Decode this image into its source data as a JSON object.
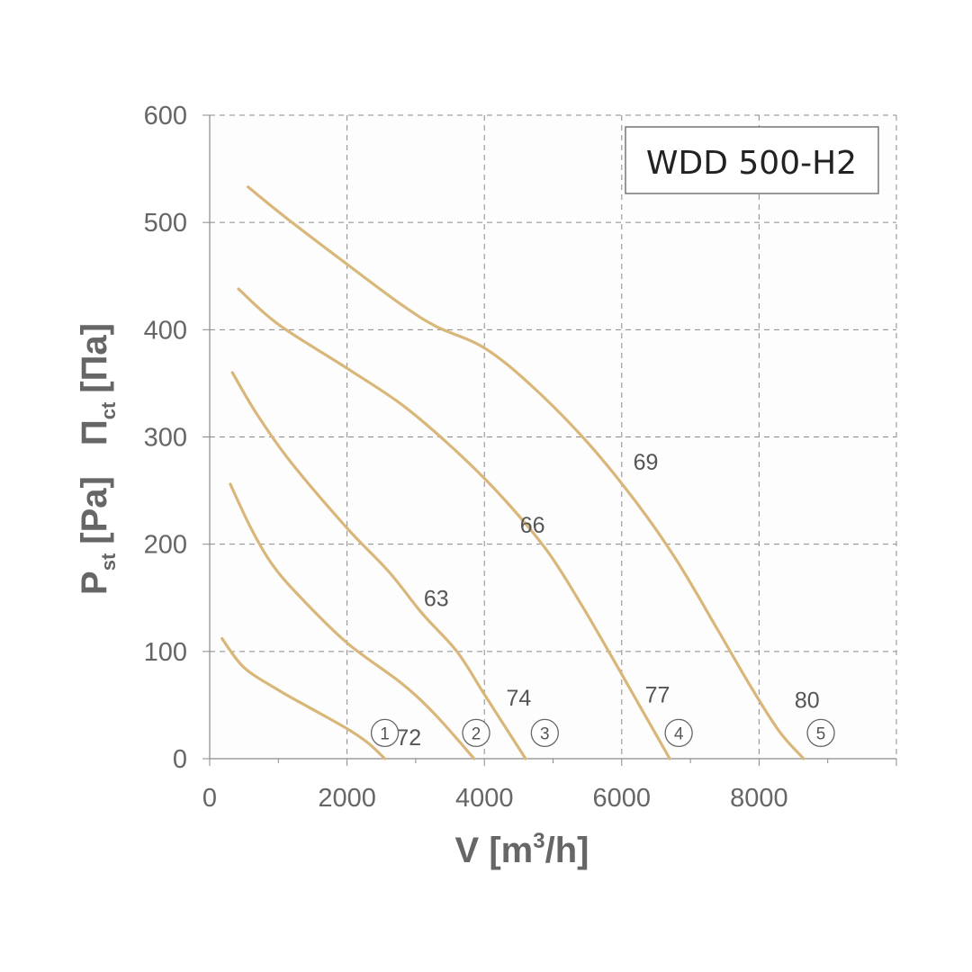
{
  "chart_data": {
    "type": "line",
    "title": "WDD 500-H2",
    "xlabel_main": "V [m",
    "xlabel_sup": "3",
    "xlabel_end": "/h]",
    "ylabel_p": "P",
    "ylabel_p_sub": "st",
    "ylabel_p_unit": "[Pa]",
    "ylabel_pi": "Π",
    "ylabel_pi_sub": "ct",
    "ylabel_pi_unit": "[Па]",
    "xlim": [
      0,
      10000
    ],
    "ylim": [
      0,
      600
    ],
    "x_ticks": [
      0,
      2000,
      4000,
      6000,
      8000
    ],
    "x_tick_labels": [
      "0",
      "2000",
      "4000",
      "6000",
      "8000"
    ],
    "y_ticks": [
      0,
      100,
      200,
      300,
      400,
      500,
      600
    ],
    "y_tick_labels": [
      "0",
      "100",
      "200",
      "300",
      "400",
      "500",
      "600"
    ],
    "grid": true,
    "line_color": "#D9B77A",
    "series": [
      {
        "marker": "①",
        "label": "72",
        "points": [
          [
            180,
            112
          ],
          [
            500,
            85
          ],
          [
            1000,
            64
          ],
          [
            1500,
            46
          ],
          [
            2000,
            28
          ],
          [
            2300,
            15
          ],
          [
            2550,
            0
          ]
        ]
      },
      {
        "marker": "②",
        "label": "74",
        "points": [
          [
            300,
            256
          ],
          [
            600,
            215
          ],
          [
            900,
            182
          ],
          [
            1300,
            152
          ],
          [
            2000,
            108
          ],
          [
            2800,
            70
          ],
          [
            3300,
            40
          ],
          [
            3850,
            0
          ]
        ]
      },
      {
        "marker": "③",
        "label": "63",
        "points": [
          [
            330,
            360
          ],
          [
            700,
            320
          ],
          [
            1200,
            275
          ],
          [
            2000,
            215
          ],
          [
            2600,
            175
          ],
          [
            3100,
            135
          ],
          [
            3600,
            100
          ],
          [
            4000,
            60
          ],
          [
            4600,
            0
          ]
        ]
      },
      {
        "marker": "④",
        "label": "66",
        "points": [
          [
            420,
            438
          ],
          [
            1000,
            405
          ],
          [
            2000,
            364
          ],
          [
            2800,
            330
          ],
          [
            3500,
            292
          ],
          [
            4200,
            248
          ],
          [
            4900,
            195
          ],
          [
            5400,
            145
          ],
          [
            5900,
            90
          ],
          [
            6300,
            45
          ],
          [
            6700,
            0
          ]
        ]
      },
      {
        "marker": "⑤",
        "label": "69",
        "points": [
          [
            560,
            533
          ],
          [
            1100,
            505
          ],
          [
            2000,
            461
          ],
          [
            2800,
            423
          ],
          [
            3300,
            403
          ],
          [
            4000,
            383
          ],
          [
            4700,
            347
          ],
          [
            5500,
            295
          ],
          [
            6200,
            240
          ],
          [
            6800,
            185
          ],
          [
            7400,
            120
          ],
          [
            7900,
            65
          ],
          [
            8300,
            25
          ],
          [
            8650,
            0
          ]
        ]
      }
    ],
    "curve_labels": [
      {
        "text": "69",
        "x": 6350,
        "y": 277
      },
      {
        "text": "66",
        "x": 4700,
        "y": 218
      },
      {
        "text": "63",
        "x": 3300,
        "y": 150
      },
      {
        "text": "74",
        "x": 4500,
        "y": 57
      },
      {
        "text": "77",
        "x": 6520,
        "y": 60
      },
      {
        "text": "80",
        "x": 8700,
        "y": 55
      },
      {
        "text": "72",
        "x": 2900,
        "y": 20
      }
    ],
    "markers": [
      {
        "text": "①",
        "x": 2550,
        "y": 24
      },
      {
        "text": "②",
        "x": 3880,
        "y": 24
      },
      {
        "text": "③",
        "x": 4880,
        "y": 24
      },
      {
        "text": "④",
        "x": 6830,
        "y": 24
      },
      {
        "text": "⑤",
        "x": 8900,
        "y": 24
      }
    ]
  }
}
